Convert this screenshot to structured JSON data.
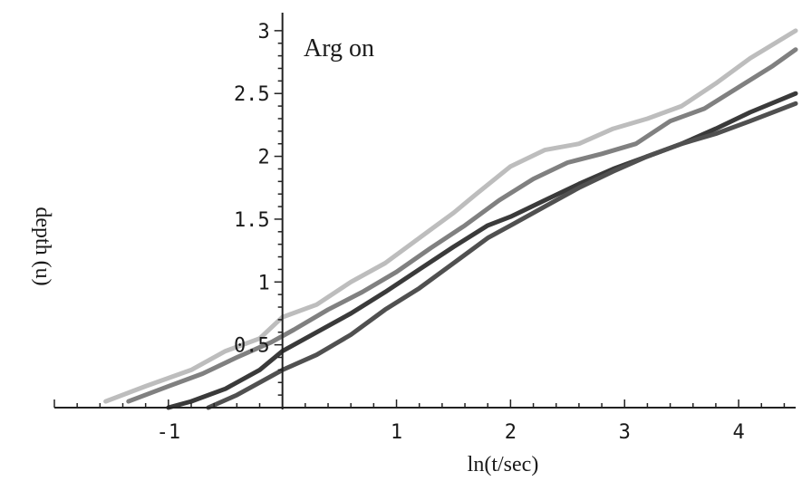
{
  "chart_data": {
    "type": "line",
    "title": "",
    "annotation": "Arg on",
    "xlabel": "ln(t/sec)",
    "ylabel": "depth (u)",
    "xlim": [
      -2.0,
      4.5
    ],
    "ylim": [
      0,
      3.1
    ],
    "xticks": [
      -1,
      1,
      2,
      3,
      4
    ],
    "xtick_labels": [
      "-1",
      "1",
      "2",
      "3",
      "4"
    ],
    "yticks": [
      0.5,
      1,
      1.5,
      2,
      2.5,
      3
    ],
    "ytick_labels": [
      "0.5",
      "1",
      "1.5",
      "2",
      "2.5",
      "3"
    ],
    "grid": false,
    "series": [
      {
        "color": "#bdbdbd",
        "x": [
          -1.55,
          -1.2,
          -0.8,
          -0.5,
          -0.2,
          0.0,
          0.3,
          0.6,
          0.9,
          1.2,
          1.5,
          1.7,
          2.0,
          2.3,
          2.6,
          2.9,
          3.2,
          3.5,
          3.8,
          4.1,
          4.5
        ],
        "y": [
          0.05,
          0.17,
          0.3,
          0.45,
          0.55,
          0.72,
          0.82,
          1.0,
          1.15,
          1.35,
          1.55,
          1.7,
          1.92,
          2.05,
          2.1,
          2.22,
          2.3,
          2.4,
          2.58,
          2.78,
          3.0
        ]
      },
      {
        "color": "#808080",
        "x": [
          -1.35,
          -1.0,
          -0.7,
          -0.4,
          -0.1,
          0.1,
          0.4,
          0.7,
          1.0,
          1.3,
          1.6,
          1.9,
          2.2,
          2.5,
          2.8,
          3.1,
          3.4,
          3.7,
          4.0,
          4.3,
          4.5
        ],
        "y": [
          0.05,
          0.17,
          0.27,
          0.4,
          0.52,
          0.62,
          0.78,
          0.92,
          1.08,
          1.27,
          1.45,
          1.65,
          1.82,
          1.95,
          2.02,
          2.1,
          2.28,
          2.38,
          2.55,
          2.72,
          2.85
        ]
      },
      {
        "color": "#3a3a3a",
        "x": [
          -1.0,
          -0.8,
          -0.5,
          -0.2,
          0.0,
          0.3,
          0.6,
          0.9,
          1.2,
          1.5,
          1.8,
          2.0,
          2.3,
          2.6,
          2.9,
          3.2,
          3.5,
          3.8,
          4.1,
          4.5
        ],
        "y": [
          0.0,
          0.05,
          0.15,
          0.3,
          0.45,
          0.6,
          0.75,
          0.92,
          1.1,
          1.28,
          1.45,
          1.52,
          1.65,
          1.78,
          1.9,
          2.0,
          2.1,
          2.22,
          2.35,
          2.5
        ]
      },
      {
        "color": "#505050",
        "x": [
          -0.65,
          -0.4,
          -0.2,
          0.0,
          0.3,
          0.6,
          0.9,
          1.2,
          1.5,
          1.8,
          2.0,
          2.3,
          2.6,
          2.9,
          3.2,
          3.5,
          3.8,
          4.1,
          4.5
        ],
        "y": [
          0.0,
          0.1,
          0.2,
          0.3,
          0.42,
          0.58,
          0.78,
          0.95,
          1.15,
          1.35,
          1.45,
          1.6,
          1.75,
          1.88,
          2.0,
          2.1,
          2.18,
          2.28,
          2.42
        ]
      }
    ]
  }
}
